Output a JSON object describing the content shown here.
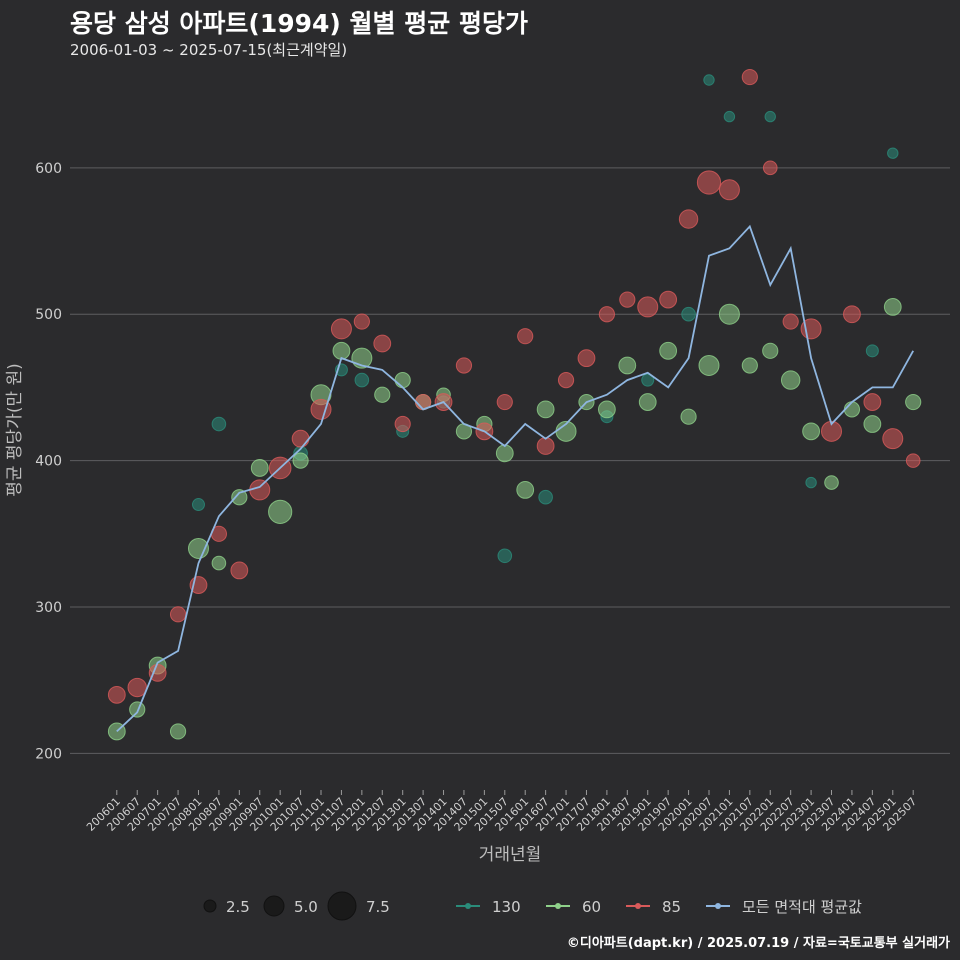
{
  "header": {
    "title": "용당 삼성 아파트(1994) 월별 평균 평당가",
    "subtitle": "2006-01-03 ~ 2025-07-15(최근계약일)"
  },
  "footer": {
    "credit": "©디아파트(dapt.kr) / 2025.07.19 / 자료=국토교통부 실거래가"
  },
  "colors": {
    "background": "#2b2b2d",
    "grid": "#5e5e60",
    "area_130": "#2a8c7a",
    "area_60": "#8fd18a",
    "area_85": "#d95a5a",
    "avg_line": "#8fb6e0"
  },
  "chart_data": {
    "type": "scatter",
    "title": "용당 삼성 아파트(1994) 월별 평균 평당가",
    "subtitle": "2006-01-03 ~ 2025-07-15(최근계약일)",
    "xlabel": "거래년월",
    "ylabel": "평균 평당가(만 원)",
    "xlim": [
      "2006-01",
      "2025-07"
    ],
    "ylim": [
      175,
      660
    ],
    "yticks": [
      200,
      300,
      400,
      500,
      600
    ],
    "xticks": [
      "200601",
      "200607",
      "200701",
      "200707",
      "200801",
      "200807",
      "200901",
      "200907",
      "201001",
      "201007",
      "201101",
      "201107",
      "201201",
      "201207",
      "201301",
      "201307",
      "201401",
      "201407",
      "201501",
      "201507",
      "201601",
      "201607",
      "201701",
      "201707",
      "201801",
      "201807",
      "201901",
      "201907",
      "202001",
      "202007",
      "202101",
      "202107",
      "202201",
      "202207",
      "202301",
      "202307",
      "202401",
      "202407",
      "202501",
      "202507"
    ],
    "grid": true,
    "legend_position": "bottom",
    "size_legend": {
      "values": [
        2.5,
        5.0,
        7.5
      ]
    },
    "series": [
      {
        "name": "모든 면적대 평균값",
        "type": "line",
        "x": [
          "2006-01",
          "2006-07",
          "2007-01",
          "2007-07",
          "2008-01",
          "2008-07",
          "2009-01",
          "2009-07",
          "2010-01",
          "2010-07",
          "2011-01",
          "2011-07",
          "2012-01",
          "2012-07",
          "2013-01",
          "2013-07",
          "2014-01",
          "2014-07",
          "2015-01",
          "2015-07",
          "2016-01",
          "2016-07",
          "2017-01",
          "2017-07",
          "2018-01",
          "2018-07",
          "2019-01",
          "2019-07",
          "2020-01",
          "2020-07",
          "2021-01",
          "2021-07",
          "2022-01",
          "2022-07",
          "2023-01",
          "2023-07",
          "2024-01",
          "2024-07",
          "2025-01",
          "2025-07"
        ],
        "y": [
          215,
          228,
          262,
          270,
          330,
          362,
          378,
          382,
          395,
          408,
          425,
          470,
          465,
          462,
          450,
          435,
          440,
          425,
          420,
          410,
          425,
          415,
          425,
          440,
          445,
          455,
          460,
          450,
          470,
          540,
          545,
          560,
          520,
          545,
          470,
          425,
          440,
          450,
          450,
          475
        ]
      },
      {
        "name": "130",
        "type": "scatter",
        "points": [
          [
            "2008-01",
            370,
            2.5
          ],
          [
            "2008-07",
            425,
            3
          ],
          [
            "2010-07",
            405,
            3
          ],
          [
            "2011-07",
            462,
            2.5
          ],
          [
            "2012-01",
            455,
            3
          ],
          [
            "2013-01",
            420,
            2.5
          ],
          [
            "2014-01",
            440,
            2.5
          ],
          [
            "2015-07",
            335,
            3
          ],
          [
            "2016-07",
            375,
            3
          ],
          [
            "2018-01",
            430,
            2.5
          ],
          [
            "2019-01",
            455,
            2.5
          ],
          [
            "2020-01",
            500,
            3
          ],
          [
            "2020-07",
            660,
            2
          ],
          [
            "2021-01",
            635,
            2
          ],
          [
            "2022-01",
            635,
            2
          ],
          [
            "2023-01",
            385,
            2
          ],
          [
            "2024-07",
            475,
            2.5
          ],
          [
            "2025-01",
            610,
            2
          ]
        ]
      },
      {
        "name": "60",
        "type": "scatter",
        "points": [
          [
            "2006-01",
            215,
            4
          ],
          [
            "2006-07",
            230,
            3.5
          ],
          [
            "2007-01",
            260,
            4
          ],
          [
            "2007-07",
            215,
            3.5
          ],
          [
            "2008-01",
            340,
            5
          ],
          [
            "2008-07",
            330,
            3
          ],
          [
            "2009-01",
            375,
            3.5
          ],
          [
            "2009-07",
            395,
            4
          ],
          [
            "2010-01",
            365,
            6
          ],
          [
            "2010-07",
            400,
            3.5
          ],
          [
            "2011-01",
            445,
            5
          ],
          [
            "2011-07",
            475,
            4
          ],
          [
            "2012-01",
            470,
            5
          ],
          [
            "2012-07",
            445,
            3.5
          ],
          [
            "2013-01",
            455,
            3.5
          ],
          [
            "2013-07",
            440,
            3.5
          ],
          [
            "2014-01",
            445,
            3
          ],
          [
            "2014-07",
            420,
            3.5
          ],
          [
            "2015-01",
            425,
            3.5
          ],
          [
            "2015-07",
            405,
            4
          ],
          [
            "2016-01",
            380,
            4
          ],
          [
            "2016-07",
            435,
            4
          ],
          [
            "2017-01",
            420,
            5
          ],
          [
            "2017-07",
            440,
            3.5
          ],
          [
            "2018-01",
            435,
            4
          ],
          [
            "2018-07",
            465,
            4
          ],
          [
            "2019-01",
            440,
            4
          ],
          [
            "2019-07",
            475,
            4
          ],
          [
            "2020-01",
            430,
            3.5
          ],
          [
            "2020-07",
            465,
            5
          ],
          [
            "2021-01",
            500,
            5
          ],
          [
            "2021-07",
            465,
            3.5
          ],
          [
            "2022-01",
            475,
            3.5
          ],
          [
            "2022-07",
            455,
            4.5
          ],
          [
            "2023-01",
            420,
            4
          ],
          [
            "2023-07",
            385,
            3
          ],
          [
            "2024-01",
            435,
            3.5
          ],
          [
            "2024-07",
            425,
            4
          ],
          [
            "2025-01",
            505,
            4
          ],
          [
            "2025-07",
            440,
            3.5
          ]
        ]
      },
      {
        "name": "85",
        "type": "scatter",
        "points": [
          [
            "2006-01",
            240,
            4
          ],
          [
            "2006-07",
            245,
            4.5
          ],
          [
            "2007-01",
            255,
            4
          ],
          [
            "2007-07",
            295,
            3.5
          ],
          [
            "2008-01",
            315,
            4
          ],
          [
            "2008-07",
            350,
            3.5
          ],
          [
            "2009-01",
            325,
            4
          ],
          [
            "2009-07",
            380,
            5
          ],
          [
            "2010-01",
            395,
            5.5
          ],
          [
            "2010-07",
            415,
            4
          ],
          [
            "2011-01",
            435,
            5
          ],
          [
            "2011-07",
            490,
            5
          ],
          [
            "2012-01",
            495,
            3.5
          ],
          [
            "2012-07",
            480,
            4
          ],
          [
            "2013-01",
            425,
            3.5
          ],
          [
            "2013-07",
            440,
            3.5
          ],
          [
            "2014-01",
            440,
            4
          ],
          [
            "2014-07",
            465,
            3.5
          ],
          [
            "2015-01",
            420,
            4
          ],
          [
            "2015-07",
            440,
            3.5
          ],
          [
            "2016-01",
            485,
            3.5
          ],
          [
            "2016-07",
            410,
            4
          ],
          [
            "2017-01",
            455,
            3.5
          ],
          [
            "2017-07",
            470,
            4
          ],
          [
            "2018-01",
            500,
            3.5
          ],
          [
            "2018-07",
            510,
            3.5
          ],
          [
            "2019-01",
            505,
            5
          ],
          [
            "2019-07",
            510,
            4
          ],
          [
            "2020-01",
            565,
            4.5
          ],
          [
            "2020-07",
            590,
            6
          ],
          [
            "2021-01",
            585,
            5
          ],
          [
            "2021-07",
            662,
            3.5
          ],
          [
            "2022-01",
            600,
            3
          ],
          [
            "2022-07",
            495,
            3.5
          ],
          [
            "2023-01",
            490,
            5
          ],
          [
            "2023-07",
            420,
            5
          ],
          [
            "2024-01",
            500,
            4
          ],
          [
            "2024-07",
            440,
            4
          ],
          [
            "2025-01",
            415,
            5
          ],
          [
            "2025-07",
            400,
            3
          ]
        ]
      }
    ]
  }
}
